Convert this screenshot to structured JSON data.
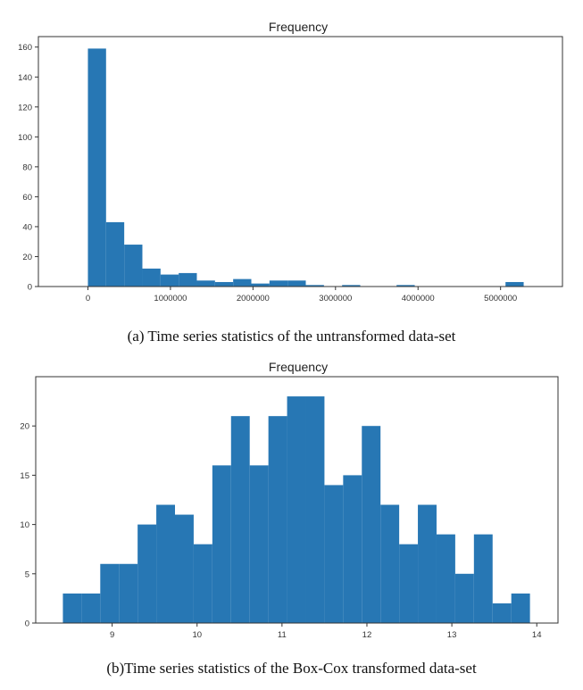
{
  "chart_data": [
    {
      "type": "bar",
      "title": "Frequency",
      "caption": "(a) Time series statistics of the untransformed data-set",
      "xlabel": "",
      "ylabel": "",
      "bin_width": 220000,
      "bins_start": [
        0,
        220000,
        440000,
        660000,
        880000,
        1100000,
        1320000,
        1540000,
        1760000,
        1980000,
        2200000,
        2420000,
        2640000,
        2860000,
        3080000,
        3300000,
        3520000,
        3740000,
        3960000,
        4180000,
        4400000,
        4620000,
        4840000,
        5060000
      ],
      "values": [
        159,
        43,
        28,
        12,
        8,
        9,
        4,
        3,
        5,
        2,
        4,
        4,
        1,
        0,
        1,
        0,
        0,
        1,
        0,
        0,
        0,
        0,
        0,
        3
      ],
      "xlim": [
        -600000,
        5750000
      ],
      "ylim": [
        0,
        167
      ],
      "xticks": [
        0,
        1000000,
        2000000,
        3000000,
        4000000,
        5000000
      ],
      "xtick_labels": [
        "0",
        "1000000",
        "2000000",
        "3000000",
        "4000000",
        "5000000"
      ],
      "yticks": [
        0,
        20,
        40,
        60,
        80,
        100,
        120,
        140,
        160
      ],
      "ytick_labels": [
        "0",
        "20",
        "40",
        "60",
        "80",
        "100",
        "120",
        "140",
        "160"
      ]
    },
    {
      "type": "bar",
      "title": "Frequency",
      "caption": "(b)Time series statistics of the Box-Cox transformed data-set",
      "xlabel": "",
      "ylabel": "",
      "bin_width": 0.22,
      "bins_start": [
        8.42,
        8.64,
        8.86,
        9.08,
        9.3,
        9.52,
        9.74,
        9.96,
        10.18,
        10.4,
        10.62,
        10.84,
        11.06,
        11.28,
        11.5,
        11.72,
        11.94,
        12.16,
        12.38,
        12.6,
        12.82,
        13.04,
        13.26,
        13.48,
        13.7
      ],
      "values": [
        3,
        3,
        6,
        6,
        10,
        12,
        11,
        8,
        16,
        21,
        16,
        21,
        23,
        23,
        14,
        15,
        20,
        12,
        8,
        12,
        9,
        5,
        9,
        2,
        3
      ],
      "xlim": [
        8.1,
        14.25
      ],
      "ylim": [
        0,
        25
      ],
      "xticks": [
        9,
        10,
        11,
        12,
        13,
        14
      ],
      "xtick_labels": [
        "9",
        "10",
        "11",
        "12",
        "13",
        "14"
      ],
      "yticks": [
        0,
        5,
        10,
        15,
        20
      ],
      "ytick_labels": [
        "0",
        "5",
        "10",
        "15",
        "20"
      ]
    }
  ]
}
